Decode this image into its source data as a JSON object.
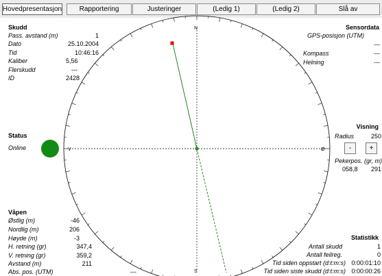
{
  "tabs": [
    {
      "label": "Hovedpresentasjon",
      "active": true
    },
    {
      "label": "Rapportering",
      "active": false
    },
    {
      "label": "Justeringer",
      "active": false
    },
    {
      "label": "(Ledig 1)",
      "active": false
    },
    {
      "label": "(Ledig 2)",
      "active": false
    },
    {
      "label": "Slå av",
      "active": false
    }
  ],
  "skudd": {
    "title": "Skudd",
    "rows": [
      {
        "label": "Pass. avstand (m)",
        "value": "1"
      },
      {
        "label": "Dato",
        "value": "25.10.2004"
      },
      {
        "label": "Tid",
        "value": "10:46:16"
      },
      {
        "label": "Kaliber",
        "value": "5,56"
      },
      {
        "label": "Flerskudd",
        "value": "---"
      },
      {
        "label": "ID",
        "value": "2428"
      }
    ]
  },
  "sensordata": {
    "title": "Sensordata",
    "rows": [
      {
        "label": "GPS-posisjon (UTM)",
        "value": ""
      },
      {
        "label": "",
        "value": "---"
      },
      {
        "label": "Kompass",
        "value": "---"
      },
      {
        "label": "Helning",
        "value": "---"
      }
    ]
  },
  "status": {
    "title": "Status",
    "label": "Online",
    "color": "#138a13"
  },
  "visning": {
    "title": "Visning",
    "radius_label": "Radius",
    "radius_value": "250",
    "minus_label": "-",
    "plus_label": "+",
    "pekerpos_label": "Pekerpos. (gr, m)",
    "pekerpos_values": [
      "058,8",
      "291"
    ]
  },
  "vapen": {
    "title": "Våpen",
    "rows": [
      {
        "label": "Østlig (m)",
        "value": "-46"
      },
      {
        "label": "Nordlig (m)",
        "value": "206"
      },
      {
        "label": "Høyde (m)",
        "value": "-3"
      },
      {
        "label": "H. retning (gr)",
        "value": "347,4"
      },
      {
        "label": "V. retning (gr)",
        "value": "359,2"
      },
      {
        "label": "Avstand (m)",
        "value": "211"
      },
      {
        "label": "Abs. pos. (UTM)",
        "value": "---"
      }
    ]
  },
  "statistikk": {
    "title": "Statistikk",
    "rows": [
      {
        "label": "Antall skudd",
        "value": "1"
      },
      {
        "label": "Antall feilreg.",
        "value": "0"
      },
      {
        "label": "Tid siden oppstart (d:t:m:s)",
        "value": "0:00:01:10"
      },
      {
        "label": "Tid siden siste skudd (d:t:m:s)",
        "value": "0:00:00:26"
      }
    ]
  },
  "compass": {
    "n": "N",
    "s": "S",
    "v": "V",
    "o": "Ø"
  },
  "colors": {
    "line": "#1a8a1a",
    "marker": "#e00000",
    "axis": "#000000"
  }
}
